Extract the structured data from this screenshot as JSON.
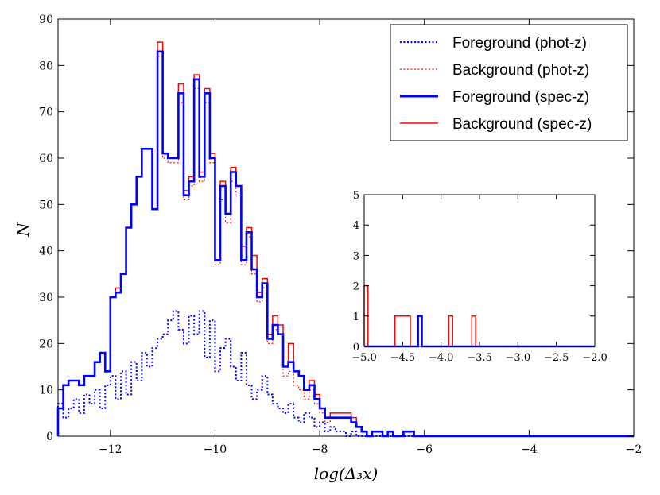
{
  "chart_data": {
    "type": "histogram-step",
    "xlabel": "log(Δ₃x)",
    "ylabel": "N",
    "xlim": [
      -13,
      -2
    ],
    "ylim": [
      0,
      90
    ],
    "xticks": [
      -12,
      -10,
      -8,
      -6,
      -4,
      -2
    ],
    "xtick_labels": [
      "−12",
      "−10",
      "−8",
      "−6",
      "−4",
      "−2"
    ],
    "yticks": [
      0,
      10,
      20,
      30,
      40,
      50,
      60,
      70,
      80,
      90
    ],
    "bin_start": -13,
    "bin_width": 0.1,
    "legend": {
      "placement": "top-right",
      "entries": [
        {
          "label": "Foreground (phot-z)",
          "color": "#0000ff",
          "style": "dotted"
        },
        {
          "label": "Background (phot-z)",
          "color": "#ff0000",
          "style": "dotted"
        },
        {
          "label": "Foreground (spec-z)",
          "color": "#0000ff",
          "style": "solid"
        },
        {
          "label": "Background (spec-z)",
          "color": "#ff0000",
          "style": "solid"
        }
      ]
    },
    "series": [
      {
        "name": "Background (spec-z)",
        "color": "#ff0000",
        "style": "solid",
        "values": [
          6,
          11,
          12,
          12,
          11,
          13,
          13,
          16,
          18,
          14,
          30,
          32,
          35,
          45,
          50,
          56,
          62,
          62,
          49,
          85,
          61,
          60,
          60,
          76,
          53,
          56,
          78,
          57,
          75,
          61,
          38,
          55,
          48,
          58,
          54,
          41,
          45,
          39,
          31,
          34,
          22,
          26,
          24,
          15,
          20,
          14,
          13,
          10,
          12,
          9,
          6,
          4,
          5,
          5,
          5,
          5,
          4,
          2,
          1,
          0,
          1,
          1,
          0,
          1,
          0,
          0,
          1,
          1,
          0,
          0,
          0,
          0,
          0,
          0,
          0,
          0,
          0,
          0,
          0,
          0,
          0,
          0,
          0,
          0,
          0,
          0,
          0,
          0,
          0,
          0,
          0,
          0,
          0,
          0,
          0,
          0,
          0,
          0,
          0,
          0,
          0,
          0,
          0,
          0,
          0,
          0,
          0,
          0,
          0,
          0
        ]
      },
      {
        "name": "Background (phot-z)",
        "color": "#ff0000",
        "style": "dotted",
        "values": [
          6,
          11,
          12,
          12,
          11,
          13,
          13,
          16,
          18,
          14,
          30,
          31,
          35,
          45,
          50,
          56,
          62,
          62,
          49,
          82,
          60,
          59,
          59,
          72,
          51,
          54,
          75,
          55,
          72,
          59,
          37,
          51,
          46,
          55,
          52,
          37,
          43,
          35,
          29,
          32,
          20,
          23,
          22,
          13,
          14,
          11,
          10,
          8,
          10,
          7,
          5,
          3,
          4,
          4,
          4,
          4,
          3,
          2,
          1,
          0,
          1,
          1,
          0,
          1,
          0,
          0,
          1,
          1,
          0,
          0,
          0,
          0,
          0,
          0,
          0,
          0,
          0,
          0,
          0,
          0,
          0,
          0,
          0,
          0,
          0,
          0,
          0,
          0,
          0,
          0,
          0,
          0,
          0,
          0,
          0,
          0,
          0,
          0,
          0,
          0,
          0,
          0,
          0,
          0,
          0,
          0,
          0,
          0,
          0,
          0
        ]
      },
      {
        "name": "Foreground (spec-z)",
        "color": "#0000ff",
        "style": "solid",
        "values": [
          6,
          11,
          12,
          12,
          11,
          13,
          13,
          16,
          18,
          14,
          30,
          31,
          35,
          45,
          50,
          56,
          62,
          62,
          49,
          83,
          61,
          60,
          60,
          74,
          52,
          55,
          77,
          56,
          74,
          60,
          38,
          54,
          48,
          57,
          54,
          38,
          44,
          36,
          30,
          33,
          21,
          24,
          22,
          15,
          16,
          14,
          13,
          10,
          11,
          8,
          6,
          4,
          4,
          4,
          4,
          4,
          3,
          2,
          1,
          0,
          1,
          1,
          0,
          1,
          0,
          0,
          1,
          1,
          0,
          0,
          0,
          0,
          0,
          0,
          0,
          0,
          0,
          0,
          0,
          0,
          0,
          0,
          0,
          0,
          0,
          0,
          0,
          0,
          0,
          0,
          0,
          0,
          0,
          0,
          0,
          0,
          0,
          0,
          0,
          0,
          0,
          0,
          0,
          0,
          0,
          0,
          0,
          0,
          0,
          0
        ]
      },
      {
        "name": "Foreground (phot-z)",
        "color": "#0000ff",
        "style": "dotted",
        "values": [
          7,
          4,
          6,
          8,
          5,
          9,
          7,
          10,
          6,
          11,
          13,
          8,
          14,
          9,
          16,
          12,
          18,
          15,
          19,
          21,
          22,
          25,
          27,
          23,
          20,
          26,
          22,
          27,
          17,
          25,
          14,
          19,
          21,
          15,
          12,
          18,
          11,
          8,
          10,
          13,
          9,
          7,
          6,
          5,
          7,
          4,
          3,
          5,
          4,
          2,
          3,
          1,
          2,
          1,
          1,
          0,
          1,
          0,
          0,
          0,
          0,
          0,
          0,
          0,
          0,
          0,
          0,
          0,
          0,
          0,
          0,
          0,
          0,
          0,
          0,
          0,
          0,
          0,
          0,
          0,
          0,
          0,
          0,
          0,
          0,
          0,
          0,
          0,
          0,
          0,
          0,
          0,
          0,
          0,
          0,
          0,
          0,
          0,
          0,
          0,
          0,
          0,
          0,
          0,
          0,
          0,
          0,
          0,
          0,
          0
        ]
      }
    ],
    "inset": {
      "xlim": [
        -5.0,
        -2.0
      ],
      "ylim": [
        0,
        5
      ],
      "xticks": [
        -5.0,
        -4.5,
        -4.0,
        -3.5,
        -3.0,
        -2.5,
        -2.0
      ],
      "xtick_labels": [
        "−5.0",
        "−4.5",
        "−4.0",
        "−3.5",
        "−3.0",
        "−2.5",
        "−2.0"
      ],
      "yticks": [
        0,
        1,
        2,
        3,
        4,
        5
      ],
      "bin_start": -5.0,
      "bin_width": 0.05,
      "background_values": [
        2,
        0,
        0,
        0,
        0,
        0,
        0,
        0,
        1,
        1,
        1,
        1,
        0,
        0,
        1,
        0,
        0,
        0,
        0,
        0,
        0,
        0,
        1,
        0,
        0,
        0,
        0,
        0,
        1,
        0,
        0,
        0,
        0,
        0,
        0,
        0,
        0,
        0,
        0,
        0,
        0,
        0,
        0,
        0,
        0,
        0,
        0,
        0,
        0,
        0,
        0,
        0,
        0,
        0,
        0,
        0,
        0,
        0,
        0,
        0
      ],
      "foreground_values": [
        0,
        0,
        0,
        0,
        0,
        0,
        0,
        0,
        0,
        0,
        0,
        0,
        0,
        0,
        1,
        0,
        0,
        0,
        0,
        0,
        0,
        0,
        0,
        0,
        0,
        0,
        0,
        0,
        0,
        0,
        0,
        0,
        0,
        0,
        0,
        0,
        0,
        0,
        0,
        0,
        0,
        0,
        0,
        0,
        0,
        0,
        0,
        0,
        0,
        0,
        0,
        0,
        0,
        0,
        0,
        0,
        0,
        0,
        0,
        0
      ]
    }
  }
}
